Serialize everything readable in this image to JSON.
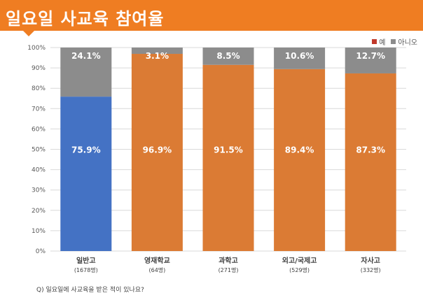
{
  "header": {
    "title": "일요일 사교육 참여율"
  },
  "legend": [
    {
      "name": "예",
      "color": "#c0392b"
    },
    {
      "name": "아니오",
      "color": "#8c8c8c"
    }
  ],
  "footnote": "Q) 일요일에 사교육을 받은 적이 있나요?",
  "chart_data": {
    "type": "bar",
    "stacked": true,
    "categories": [
      "일반고",
      "영재학교",
      "과학고",
      "외고/국제고",
      "자사고"
    ],
    "sublabels": [
      "(1678명)",
      "(64명)",
      "(271명)",
      "(529명)",
      "(332명)"
    ],
    "series": [
      {
        "name": "예",
        "values": [
          75.9,
          96.9,
          91.5,
          89.4,
          87.3
        ],
        "labels": [
          "75.9%",
          "96.9%",
          "91.5%",
          "89.4%",
          "87.3%"
        ]
      },
      {
        "name": "아니오",
        "values": [
          24.1,
          3.1,
          8.5,
          10.6,
          12.7
        ],
        "labels": [
          "24.1%",
          "3.1%",
          "8.5%",
          "10.6%",
          "12.7%"
        ]
      }
    ],
    "bar_colors": [
      "#4472c4",
      "#db7b34",
      "#db7b34",
      "#db7b34",
      "#db7b34"
    ],
    "no_color": "#8c8c8c",
    "ylim": [
      0,
      100
    ],
    "yticks": [
      0,
      10,
      20,
      30,
      40,
      50,
      60,
      70,
      80,
      90,
      100
    ],
    "ytick_labels": [
      "0%",
      "10%",
      "20%",
      "30%",
      "40%",
      "50%",
      "60%",
      "70%",
      "80%",
      "90%",
      "100%"
    ],
    "grid": true
  }
}
